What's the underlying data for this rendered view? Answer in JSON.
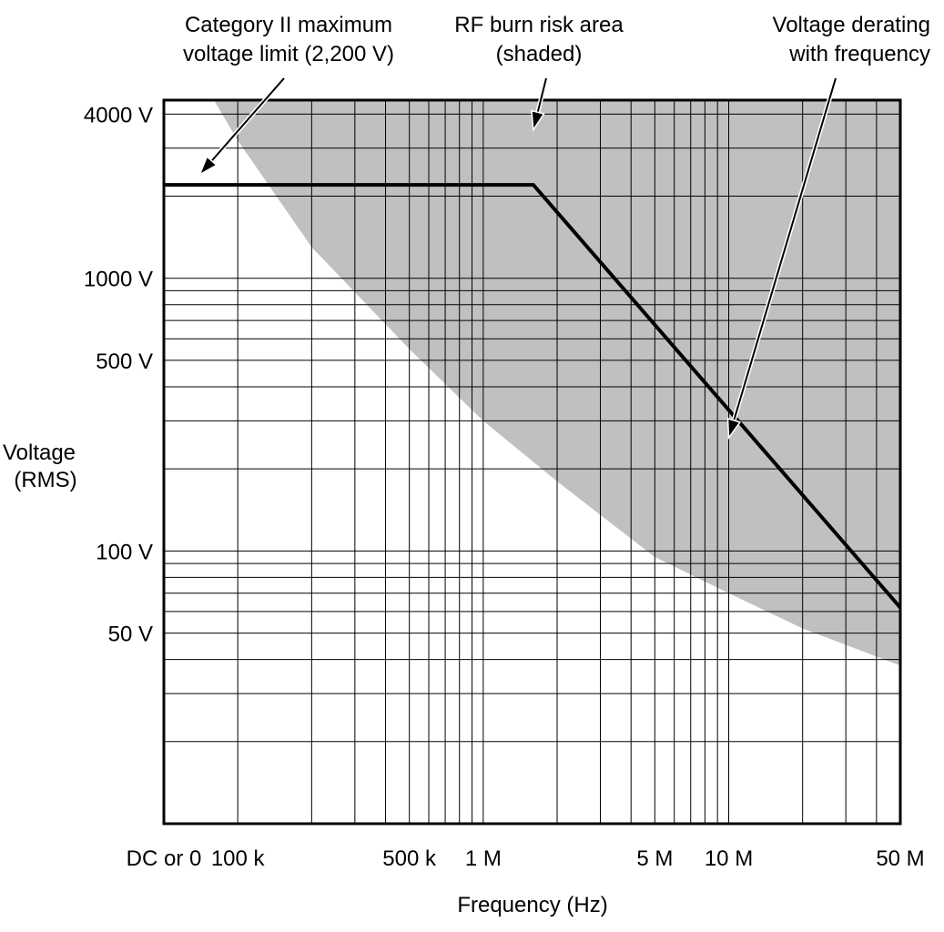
{
  "chart_data": {
    "type": "line",
    "title": "",
    "xlabel": "Frequency (Hz)",
    "ylabel": [
      "Voltage",
      "(RMS)"
    ],
    "x_scale": "log",
    "y_scale": "log",
    "xlim": [
      50000,
      50000000
    ],
    "ylim": [
      10,
      4500
    ],
    "grid": true,
    "x_tick_labels": [
      {
        "value": 50000,
        "label": "DC or 0"
      },
      {
        "value": 100000,
        "label": "100 k"
      },
      {
        "value": 500000,
        "label": "500 k"
      },
      {
        "value": 1000000,
        "label": "1 M"
      },
      {
        "value": 5000000,
        "label": "5 M"
      },
      {
        "value": 10000000,
        "label": "10 M"
      },
      {
        "value": 50000000,
        "label": "50 M"
      }
    ],
    "y_tick_labels": [
      {
        "value": 4000,
        "label": "4000 V"
      },
      {
        "value": 1000,
        "label": "1000 V"
      },
      {
        "value": 500,
        "label": "500 V"
      },
      {
        "value": 100,
        "label": "100 V"
      },
      {
        "value": 50,
        "label": "50 V"
      }
    ],
    "x_gridlines": [
      100000,
      200000,
      300000,
      400000,
      500000,
      600000,
      700000,
      800000,
      900000,
      1000000,
      2000000,
      3000000,
      4000000,
      5000000,
      6000000,
      7000000,
      8000000,
      9000000,
      10000000,
      20000000,
      30000000,
      40000000
    ],
    "y_gridlines": [
      20,
      30,
      40,
      50,
      60,
      70,
      80,
      90,
      100,
      200,
      300,
      400,
      500,
      600,
      700,
      800,
      900,
      1000,
      2000,
      3000,
      4000
    ],
    "series": [
      {
        "values": [
          {
            "x": 50000,
            "y": 2200
          },
          {
            "x": 1600000,
            "y": 2200
          },
          {
            "x": 50000000,
            "y": 62
          }
        ]
      }
    ],
    "shaded_region": {
      "boundary": [
        {
          "x": 80000,
          "y": 4500
        },
        {
          "x": 100000,
          "y": 3200
        },
        {
          "x": 200000,
          "y": 1300
        },
        {
          "x": 500000,
          "y": 550
        },
        {
          "x": 1000000,
          "y": 300
        },
        {
          "x": 2000000,
          "y": 180
        },
        {
          "x": 5000000,
          "y": 95
        },
        {
          "x": 10000000,
          "y": 70
        },
        {
          "x": 20000000,
          "y": 52
        },
        {
          "x": 50000000,
          "y": 38
        }
      ],
      "fill": "#c0c0c0"
    },
    "annotations": [
      {
        "lines": [
          "Category II maximum",
          "voltage limit (2,200 V)"
        ],
        "target": {
          "x": 70000,
          "y": 2400
        }
      },
      {
        "lines": [
          "RF burn risk area",
          "(shaded)"
        ],
        "target": {
          "x": 1600000,
          "y": 3500
        }
      },
      {
        "lines": [
          "Voltage derating",
          "with frequency"
        ],
        "target": {
          "x": 10000000,
          "y": 260
        }
      }
    ],
    "colors": {
      "line": "#000000",
      "grid": "#000000",
      "shade": "#c0c0c0"
    }
  }
}
